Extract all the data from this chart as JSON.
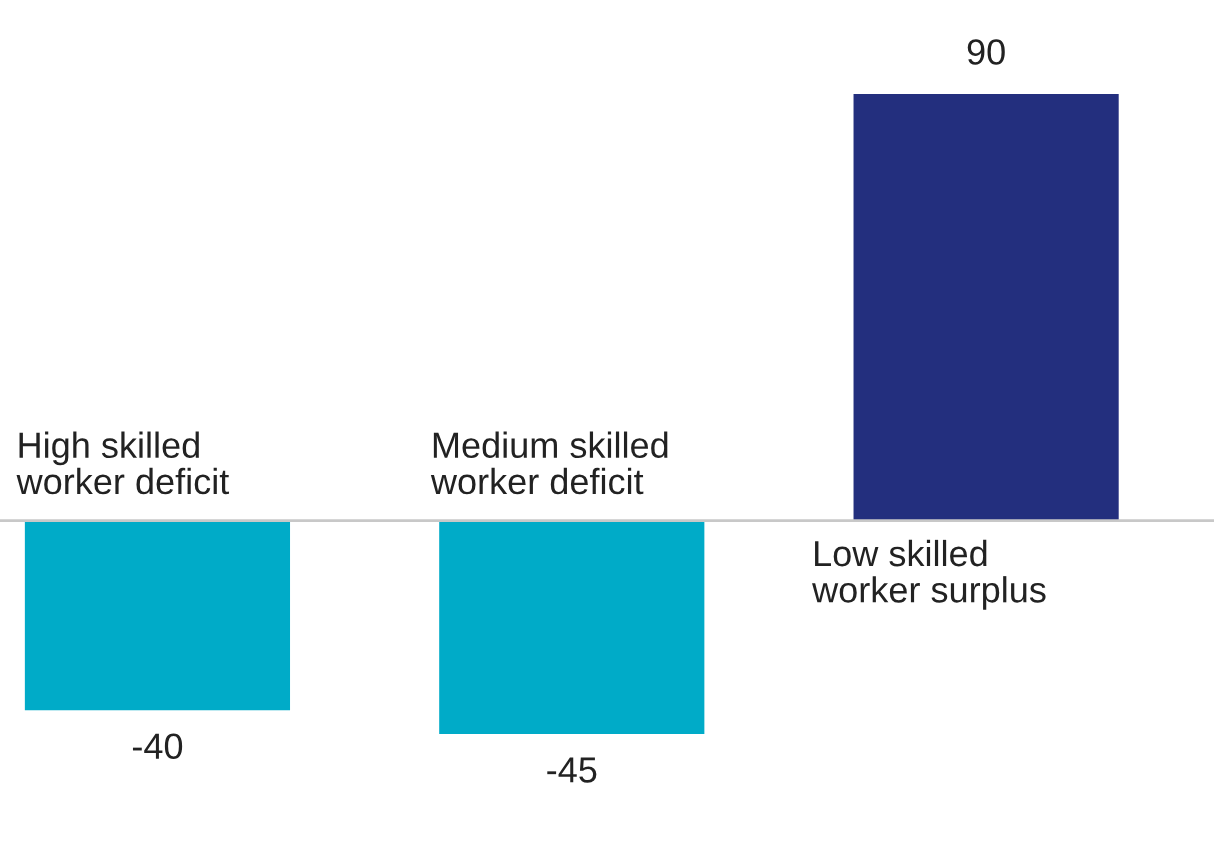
{
  "chart_data": {
    "type": "bar",
    "categories": [
      "High skilled\nworker deficit",
      "Medium skilled\nworker deficit",
      "Low skilled\nworker surplus"
    ],
    "values": [
      -40,
      -45,
      90
    ],
    "colors": [
      "#00abc8",
      "#00abc8",
      "#232f7e"
    ],
    "data_labels": true
  }
}
